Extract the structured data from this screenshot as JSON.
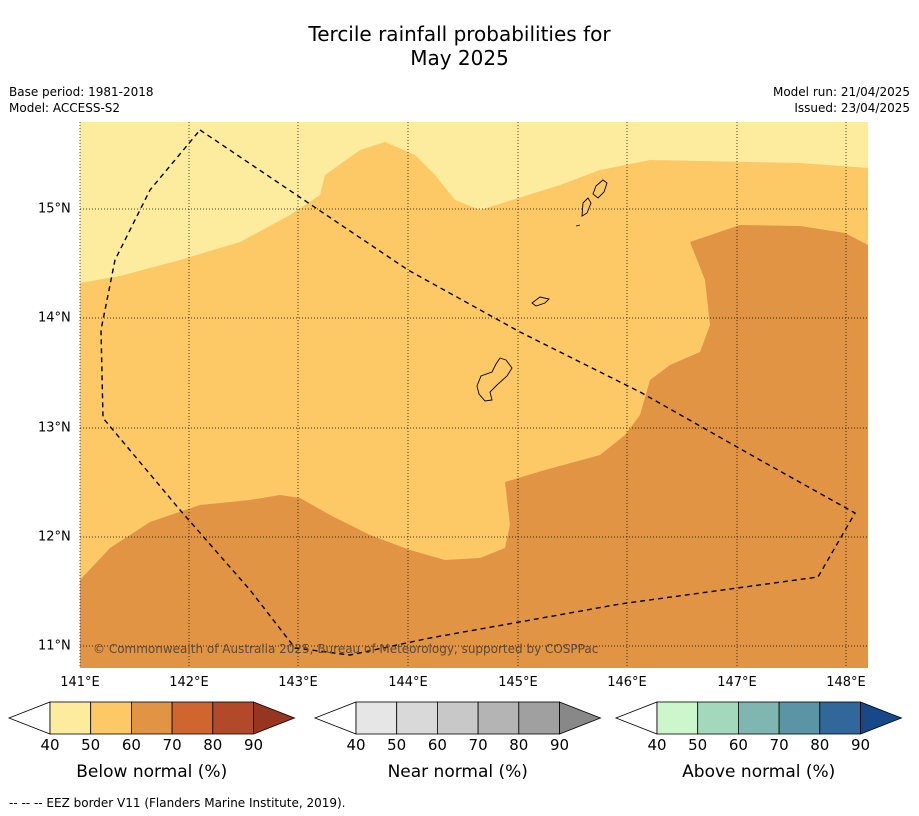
{
  "title_line1": "Tercile rainfall probabilities for",
  "title_line2": "May 2025",
  "meta_left": [
    "Base period: 1981-2018",
    "Model: ACCESS-S2"
  ],
  "meta_right": [
    "Model run: 21/04/2025",
    "Issued: 23/04/2025"
  ],
  "copyright": "© Commonwealth of Australia 2025, Bureau of Meteorology, supported by COSPPac",
  "lon_labels": [
    "141°E",
    "142°E",
    "143°E",
    "144°E",
    "145°E",
    "146°E",
    "147°E",
    "148°E"
  ],
  "lat_labels": [
    "15°N",
    "14°N",
    "13°N",
    "12°N",
    "11°N"
  ],
  "colorbars": [
    {
      "label": "Below normal (%)",
      "ticks": [
        "40",
        "50",
        "60",
        "70",
        "80",
        "90"
      ],
      "colors": [
        "#fdec9e",
        "#fcc966",
        "#e09444",
        "#d0652f",
        "#b24a2a",
        "#963620"
      ]
    },
    {
      "label": "Near normal (%)",
      "ticks": [
        "40",
        "50",
        "60",
        "70",
        "80",
        "90"
      ],
      "colors": [
        "#e6e6e6",
        "#d9d9d9",
        "#c8c8c8",
        "#b4b4b4",
        "#a0a0a0",
        "#888888"
      ]
    },
    {
      "label": "Above normal (%)",
      "ticks": [
        "40",
        "50",
        "60",
        "70",
        "80",
        "90"
      ],
      "colors": [
        "#ccf7cc",
        "#a4d8bd",
        "#80b6b0",
        "#5a94a5",
        "#32679b",
        "#174889"
      ]
    }
  ],
  "footer": "--  --  -- EEZ border V11 (Flanders Marine Institute, 2019)."
}
